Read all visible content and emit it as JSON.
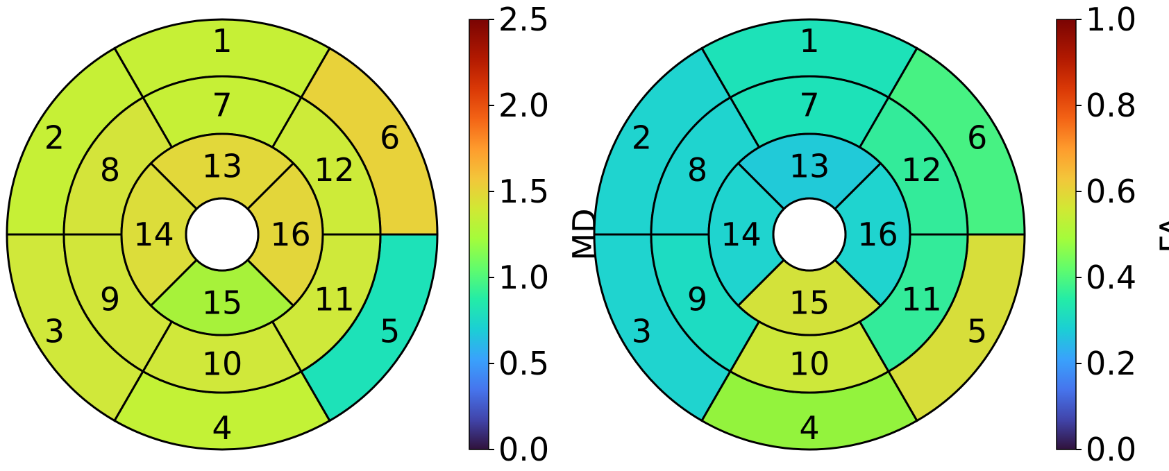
{
  "chart_data": [
    {
      "type": "bullseye",
      "colorbar": {
        "label": "MD",
        "min": 0.0,
        "max": 2.5,
        "ticks": [
          "0.0",
          "0.5",
          "1.0",
          "1.5",
          "2.0",
          "2.5"
        ],
        "tick_values": [
          0.0,
          0.5,
          1.0,
          1.5,
          2.0,
          2.5
        ],
        "colormap": "turbo"
      },
      "segments": [
        {
          "id": "1",
          "value": 1.45,
          "color": "#c6f036"
        },
        {
          "id": "2",
          "value": 1.45,
          "color": "#c6f036"
        },
        {
          "id": "3",
          "value": 1.5,
          "color": "#d0e83a"
        },
        {
          "id": "4",
          "value": 1.42,
          "color": "#c3f236"
        },
        {
          "id": "5",
          "value": 0.95,
          "color": "#1de2b8"
        },
        {
          "id": "6",
          "value": 1.65,
          "color": "#e8d23a"
        },
        {
          "id": "7",
          "value": 1.45,
          "color": "#c6f036"
        },
        {
          "id": "8",
          "value": 1.55,
          "color": "#d4e43a"
        },
        {
          "id": "9",
          "value": 1.53,
          "color": "#d2e63a"
        },
        {
          "id": "10",
          "value": 1.52,
          "color": "#d0e83a"
        },
        {
          "id": "11",
          "value": 1.5,
          "color": "#cfe93a"
        },
        {
          "id": "12",
          "value": 1.48,
          "color": "#cdeb39"
        },
        {
          "id": "13",
          "value": 1.6,
          "color": "#e2d83a"
        },
        {
          "id": "14",
          "value": 1.58,
          "color": "#dcdd3a"
        },
        {
          "id": "15",
          "value": 1.35,
          "color": "#a7f23a"
        },
        {
          "id": "16",
          "value": 1.6,
          "color": "#e3d63a"
        }
      ]
    },
    {
      "type": "bullseye",
      "colorbar": {
        "label": "FA",
        "min": 0.0,
        "max": 1.0,
        "ticks": [
          "0.0",
          "0.2",
          "0.4",
          "0.6",
          "0.8",
          "1.0"
        ],
        "tick_values": [
          0.0,
          0.2,
          0.4,
          0.6,
          0.8,
          1.0
        ],
        "colormap": "turbo"
      },
      "segments": [
        {
          "id": "1",
          "value": 0.38,
          "color": "#1de2b8"
        },
        {
          "id": "2",
          "value": 0.35,
          "color": "#1fd4cf"
        },
        {
          "id": "3",
          "value": 0.35,
          "color": "#1fd4cf"
        },
        {
          "id": "4",
          "value": 0.52,
          "color": "#93f33d"
        },
        {
          "id": "5",
          "value": 0.6,
          "color": "#d7de3a"
        },
        {
          "id": "6",
          "value": 0.45,
          "color": "#47f283"
        },
        {
          "id": "7",
          "value": 0.38,
          "color": "#1de2b8"
        },
        {
          "id": "8",
          "value": 0.35,
          "color": "#1fd4cf"
        },
        {
          "id": "9",
          "value": 0.37,
          "color": "#1ddcc2"
        },
        {
          "id": "10",
          "value": 0.57,
          "color": "#cde83a"
        },
        {
          "id": "11",
          "value": 0.42,
          "color": "#33eb9a"
        },
        {
          "id": "12",
          "value": 0.42,
          "color": "#33eb9a"
        },
        {
          "id": "13",
          "value": 0.33,
          "color": "#21cad8"
        },
        {
          "id": "14",
          "value": 0.35,
          "color": "#1fd4cf"
        },
        {
          "id": "15",
          "value": 0.58,
          "color": "#d3e23a"
        },
        {
          "id": "16",
          "value": 0.35,
          "color": "#1fd4cf"
        }
      ]
    }
  ]
}
